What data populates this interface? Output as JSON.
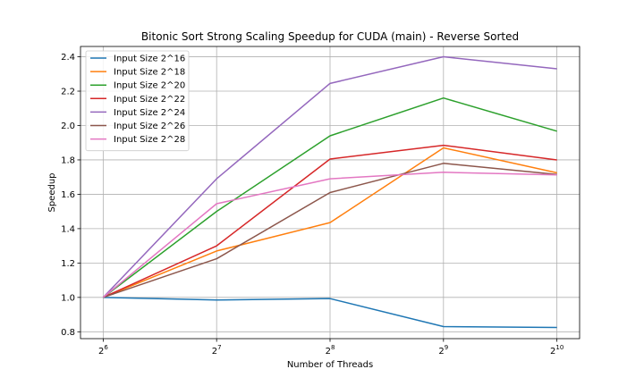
{
  "chart_data": {
    "type": "line",
    "title": "Bitonic Sort Strong Scaling Speedup for CUDA (main) - Reverse Sorted",
    "xlabel": "Number of Threads",
    "ylabel": "Speedup",
    "x": [
      64,
      128,
      256,
      512,
      1024
    ],
    "x_tick_base": "2",
    "x_tick_exponents": [
      "6",
      "7",
      "8",
      "9",
      "10"
    ],
    "x_scale": "log2",
    "ylim": [
      0.76,
      2.46
    ],
    "y_ticks": [
      "0.8",
      "1.0",
      "1.2",
      "1.4",
      "1.6",
      "1.8",
      "2.0",
      "2.2",
      "2.4"
    ],
    "grid": true,
    "legend_position": "top-left",
    "series": [
      {
        "name": "Input Size 2^16",
        "color": "#1f77b4",
        "values": [
          1.0,
          0.985,
          0.993,
          0.83,
          0.825
        ]
      },
      {
        "name": "Input Size 2^18",
        "color": "#ff7f0e",
        "values": [
          1.0,
          1.27,
          1.435,
          1.87,
          1.725
        ]
      },
      {
        "name": "Input Size 2^20",
        "color": "#2ca02c",
        "values": [
          1.0,
          1.5,
          1.94,
          2.16,
          1.967
        ]
      },
      {
        "name": "Input Size 2^22",
        "color": "#d62728",
        "values": [
          1.0,
          1.3,
          1.805,
          1.885,
          1.8
        ]
      },
      {
        "name": "Input Size 2^24",
        "color": "#9467bd",
        "values": [
          1.0,
          1.69,
          2.245,
          2.4,
          2.33
        ]
      },
      {
        "name": "Input Size 2^26",
        "color": "#8c564b",
        "values": [
          1.0,
          1.225,
          1.61,
          1.78,
          1.715
        ]
      },
      {
        "name": "Input Size 2^28",
        "color": "#e377c2",
        "values": [
          1.0,
          1.545,
          1.69,
          1.728,
          1.713
        ]
      }
    ]
  }
}
